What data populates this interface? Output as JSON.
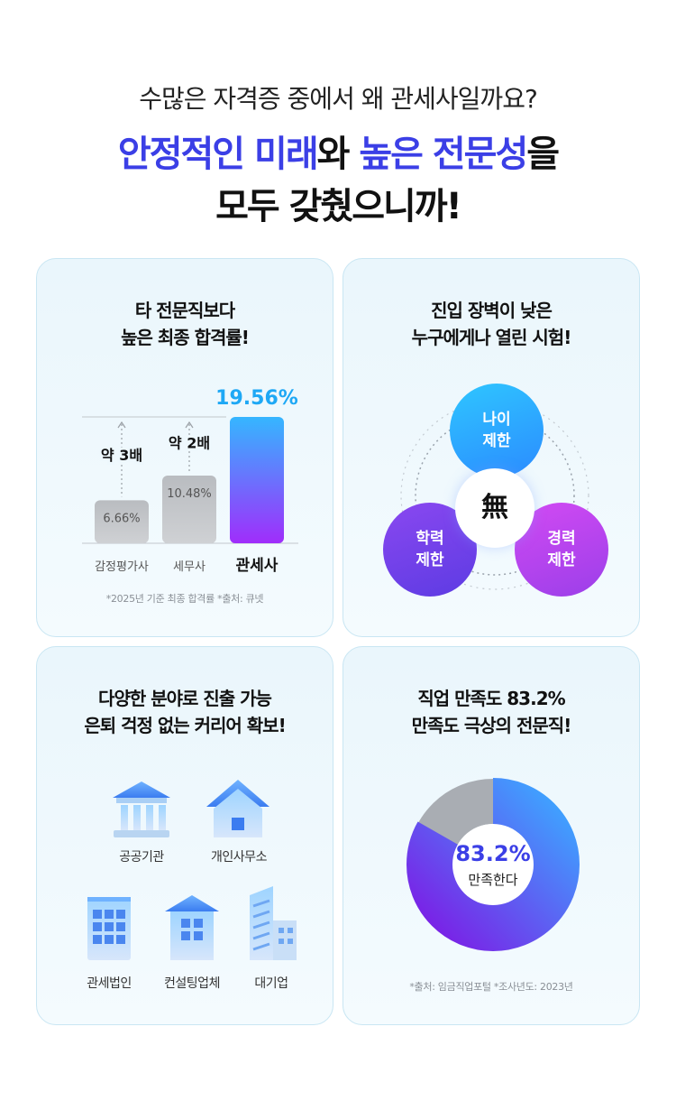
{
  "header": {
    "subtitle": "수많은 자격증 중에서 왜 관세사일까요?",
    "title_part1": "안정적인 미래",
    "title_part2": "와 ",
    "title_part3": "높은 전문성",
    "title_part4": "을",
    "title_line2": "모두 갖췄으니까!"
  },
  "card_pass_rate": {
    "title_line1": "타 전문직보다",
    "title_line2": "높은 최종 합격률!",
    "footnote": "*2025년 기준 최종 합격률 *출처: 큐넷",
    "chart_data": {
      "type": "bar",
      "categories": [
        "감정평가사",
        "세무사",
        "관세사"
      ],
      "values": [
        6.66,
        10.48,
        19.56
      ],
      "value_labels": [
        "6.66%",
        "10.48%",
        "19.56%"
      ],
      "annotations": [
        "약 3배",
        "약 2배"
      ],
      "highlight": "관세사",
      "colors": {
        "normal": "#c4c6c9",
        "highlight_top": "#35b6ff",
        "highlight_bottom": "#a02dfb",
        "accent_text": "#1ea8f5"
      }
    }
  },
  "card_entry": {
    "title_line1": "진입 장벽이 낮은",
    "title_line2": "누구에게나 열린 시험!",
    "circle_top": [
      "나이",
      "제한"
    ],
    "circle_left": [
      "학력",
      "제한"
    ],
    "circle_right": [
      "경력",
      "제한"
    ],
    "center": "無"
  },
  "card_career": {
    "title_line1": "다양한 분야로 진출 가능",
    "title_line2": "은퇴 걱정 없는 커리어 확보!",
    "items": [
      {
        "label": "공공기관",
        "icon": "bank-icon"
      },
      {
        "label": "개인사무소",
        "icon": "house-icon"
      },
      {
        "label": "관세법인",
        "icon": "office-building-icon"
      },
      {
        "label": "컨설팅업체",
        "icon": "tower-building-icon"
      },
      {
        "label": "대기업",
        "icon": "skyscraper-icon"
      }
    ]
  },
  "card_satisfaction": {
    "title_line1": "직업 만족도 83.2%",
    "title_line2": "만족도 극상의 전문직!",
    "footnote": "*출처: 임금직업포털 *조사년도: 2023년",
    "chart_data": {
      "type": "pie",
      "values": [
        83.2,
        16.8
      ],
      "value_label": "83.2%",
      "center_label": "만족한다",
      "colors": {
        "satisfied_start": "#7a21e6",
        "satisfied_end": "#3fa2ff",
        "rest": "#a9adb3"
      }
    }
  }
}
